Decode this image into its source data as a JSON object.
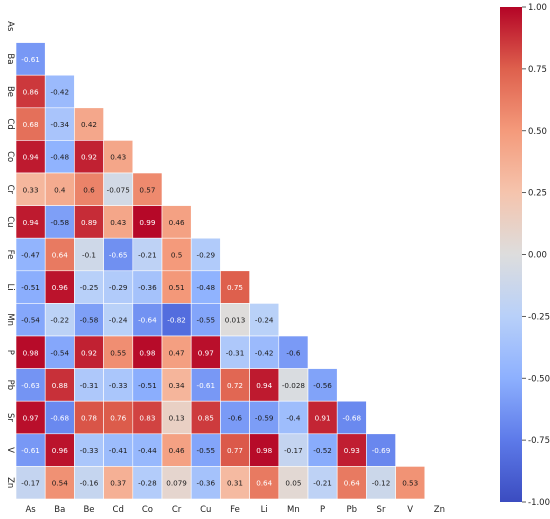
{
  "chart_data": {
    "type": "heatmap",
    "title": "",
    "xlabel": "",
    "ylabel": "",
    "mask": "upper-triangle-and-diagonal",
    "labels": [
      "As",
      "Ba",
      "Be",
      "Cd",
      "Co",
      "Cr",
      "Cu",
      "Fe",
      "Li",
      "Mn",
      "P",
      "Pb",
      "Sr",
      "V",
      "Zn"
    ],
    "matrix": [
      [
        null
      ],
      [
        -0.61
      ],
      [
        0.86,
        -0.42
      ],
      [
        0.68,
        -0.34,
        0.42
      ],
      [
        0.94,
        -0.48,
        0.92,
        0.43
      ],
      [
        0.33,
        0.4,
        0.6,
        -0.075,
        0.57
      ],
      [
        0.94,
        -0.58,
        0.89,
        0.43,
        0.99,
        0.46
      ],
      [
        -0.47,
        0.64,
        -0.1,
        -0.65,
        -0.21,
        0.5,
        -0.29
      ],
      [
        -0.51,
        0.96,
        -0.25,
        -0.29,
        -0.36,
        0.51,
        -0.48,
        0.75
      ],
      [
        -0.54,
        -0.22,
        -0.58,
        -0.24,
        -0.64,
        -0.82,
        -0.55,
        0.013,
        -0.24
      ],
      [
        0.98,
        -0.54,
        0.92,
        0.55,
        0.98,
        0.47,
        0.97,
        -0.31,
        -0.42,
        -0.6
      ],
      [
        -0.63,
        0.88,
        -0.31,
        -0.33,
        -0.51,
        0.34,
        -0.61,
        0.72,
        0.94,
        -0.028,
        -0.56
      ],
      [
        0.97,
        -0.68,
        0.78,
        0.76,
        0.83,
        0.13,
        0.85,
        -0.6,
        -0.59,
        -0.4,
        0.91,
        -0.68
      ],
      [
        -0.61,
        0.96,
        -0.33,
        -0.41,
        -0.44,
        0.46,
        -0.55,
        0.77,
        0.98,
        -0.17,
        -0.52,
        0.93,
        -0.69
      ],
      [
        -0.17,
        0.54,
        -0.16,
        0.37,
        -0.28,
        0.079,
        -0.36,
        0.31,
        0.64,
        0.05,
        -0.21,
        0.64,
        -0.12,
        0.53
      ]
    ],
    "colorbar": {
      "colormap": "coolwarm",
      "vmin": -1.0,
      "vmax": 1.0,
      "ticks": [
        "1.00",
        "0.75",
        "0.50",
        "0.25",
        "0.00",
        "-0.25",
        "-0.50",
        "-0.75",
        "-1.00"
      ]
    }
  }
}
